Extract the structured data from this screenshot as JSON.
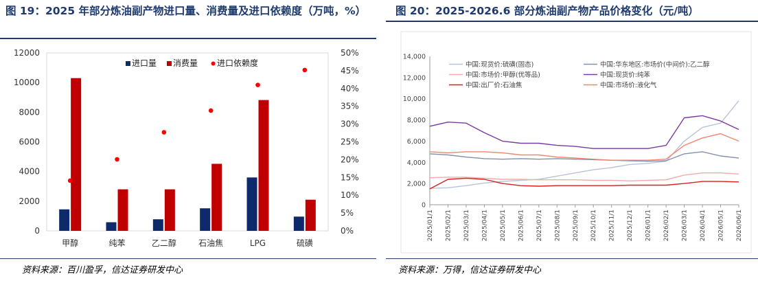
{
  "left": {
    "title": "图 19：2025 年部分炼油副产物进口量、消费量及进口依赖度（万吨，%）",
    "source": "资料来源：百川盈孚，信达证券研发中心"
  },
  "right": {
    "title": "图 20：2025-2026.6 部分炼油副产物产品价格变化（元/吨）",
    "source": "资料来源：万得，信达证券研发中心"
  },
  "chart_data": [
    {
      "type": "bar",
      "categories": [
        "甲醇",
        "纯苯",
        "乙二醇",
        "石油焦",
        "LPG",
        "硫磺"
      ],
      "series": [
        {
          "name": "进口量",
          "kind": "bar",
          "axis": "left",
          "color": "#0f2a6b",
          "values": [
            1450,
            580,
            780,
            1520,
            3600,
            960
          ]
        },
        {
          "name": "消费量",
          "kind": "bar",
          "axis": "left",
          "color": "#c00000",
          "values": [
            10300,
            2800,
            2800,
            4520,
            8820,
            2100
          ]
        },
        {
          "name": "进口依赖度",
          "kind": "scatter",
          "axis": "right",
          "color": "#ff0000",
          "values": [
            14.1,
            20.1,
            27.7,
            33.8,
            41.0,
            45.2
          ]
        }
      ],
      "ylim": [
        0,
        12000
      ],
      "yticks": [
        "0",
        "2000",
        "4000",
        "6000",
        "8000",
        "10000",
        "12000"
      ],
      "y2lim": [
        0,
        50
      ],
      "y2ticks": [
        "0%",
        "5%",
        "10%",
        "15%",
        "20%",
        "25%",
        "30%",
        "35%",
        "40%",
        "45%",
        "50%"
      ],
      "legend": "top"
    },
    {
      "type": "line",
      "x": [
        "2025/01/1",
        "2025/02/1",
        "2025/03/1",
        "2025/04/1",
        "2025/05/1",
        "2025/06/1",
        "2025/07/1",
        "2025/08/1",
        "2025/09/1",
        "2025/10/1",
        "2025/11/1",
        "2025/12/1",
        "2026/01/1",
        "2026/02/1",
        "2026/03/1",
        "2026/04/1",
        "2026/05/1",
        "2026/06/1"
      ],
      "ylim": [
        0,
        14000
      ],
      "yticks": [
        "0",
        "2,000",
        "4,000",
        "6,000",
        "8,000",
        "10,000",
        "12,000",
        "14,000"
      ],
      "legend": "top",
      "series": [
        {
          "name": "中国:现货价:硫磺(固态)",
          "color": "#b8c4d6",
          "values": [
            1550,
            1600,
            1800,
            2050,
            2200,
            2300,
            2400,
            2700,
            3000,
            3300,
            3500,
            3800,
            3900,
            4100,
            6000,
            7300,
            7700,
            9800
          ]
        },
        {
          "name": "中国:华东地区:市场价(中间价):乙二醇",
          "color": "#8190ab",
          "values": [
            4800,
            4700,
            4500,
            4350,
            4300,
            4350,
            4300,
            4350,
            4300,
            4250,
            4200,
            4150,
            4100,
            4150,
            4800,
            5000,
            4600,
            4400
          ]
        },
        {
          "name": "中国:市场价:甲醇(优等品)",
          "color": "#f2aaaa",
          "values": [
            2550,
            2600,
            2600,
            2500,
            2400,
            2400,
            2350,
            2350,
            2350,
            2300,
            2300,
            2250,
            2300,
            2350,
            2800,
            3000,
            3000,
            2900
          ]
        },
        {
          "name": "中国:现货价:纯苯",
          "color": "#7a3aa0",
          "values": [
            7400,
            7800,
            7700,
            6800,
            6000,
            5800,
            5800,
            5600,
            5500,
            5300,
            5300,
            5300,
            5300,
            5600,
            8200,
            8400,
            7900,
            7100
          ]
        },
        {
          "name": "中国:出厂价:石油焦",
          "color": "#d91e1e",
          "values": [
            1500,
            2400,
            2500,
            2400,
            2000,
            1800,
            1750,
            1800,
            1800,
            1800,
            1800,
            1850,
            1850,
            1850,
            2000,
            2200,
            2200,
            2150
          ]
        },
        {
          "name": "中国:市场价:液化气",
          "color": "#f4836e",
          "values": [
            5000,
            4900,
            5000,
            5000,
            4900,
            4700,
            4700,
            4500,
            4400,
            4300,
            4200,
            4200,
            4200,
            4300,
            5600,
            6300,
            6700,
            6000
          ]
        }
      ]
    }
  ]
}
